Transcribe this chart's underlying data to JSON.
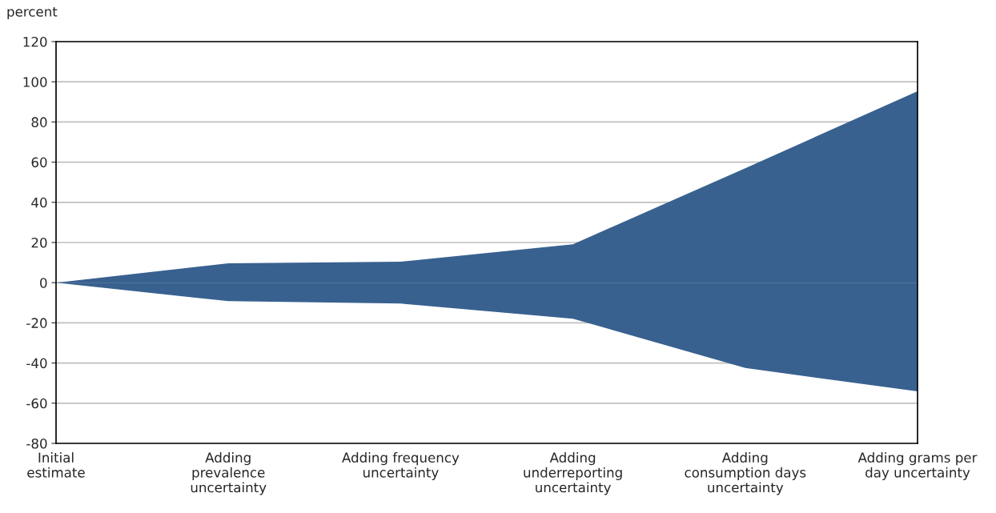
{
  "chart_data": {
    "type": "area",
    "ylabel": "percent",
    "categories": [
      "Initial\nestimate",
      "Adding\nprevalence\nuncertainty",
      "Adding frequency\nuncertainty",
      "Adding\nunderreporting\nuncertainty",
      "Adding\nconsumption days\nuncertainty",
      "Adding grams per\nday uncertainty"
    ],
    "series": [
      {
        "color": "#386190",
        "values": [
          0,
          9.6,
          10.4,
          19.1,
          57,
          95.3
        ]
      },
      {
        "color": "#386190",
        "values": [
          0,
          -9.2,
          -10.4,
          -17.9,
          -42.5,
          -54.1
        ]
      }
    ],
    "ylim": [
      -80,
      120
    ],
    "yticks": [
      -80,
      -60,
      -40,
      -20,
      0,
      20,
      40,
      60,
      80,
      100,
      120
    ],
    "grid": "y",
    "legend": false
  }
}
